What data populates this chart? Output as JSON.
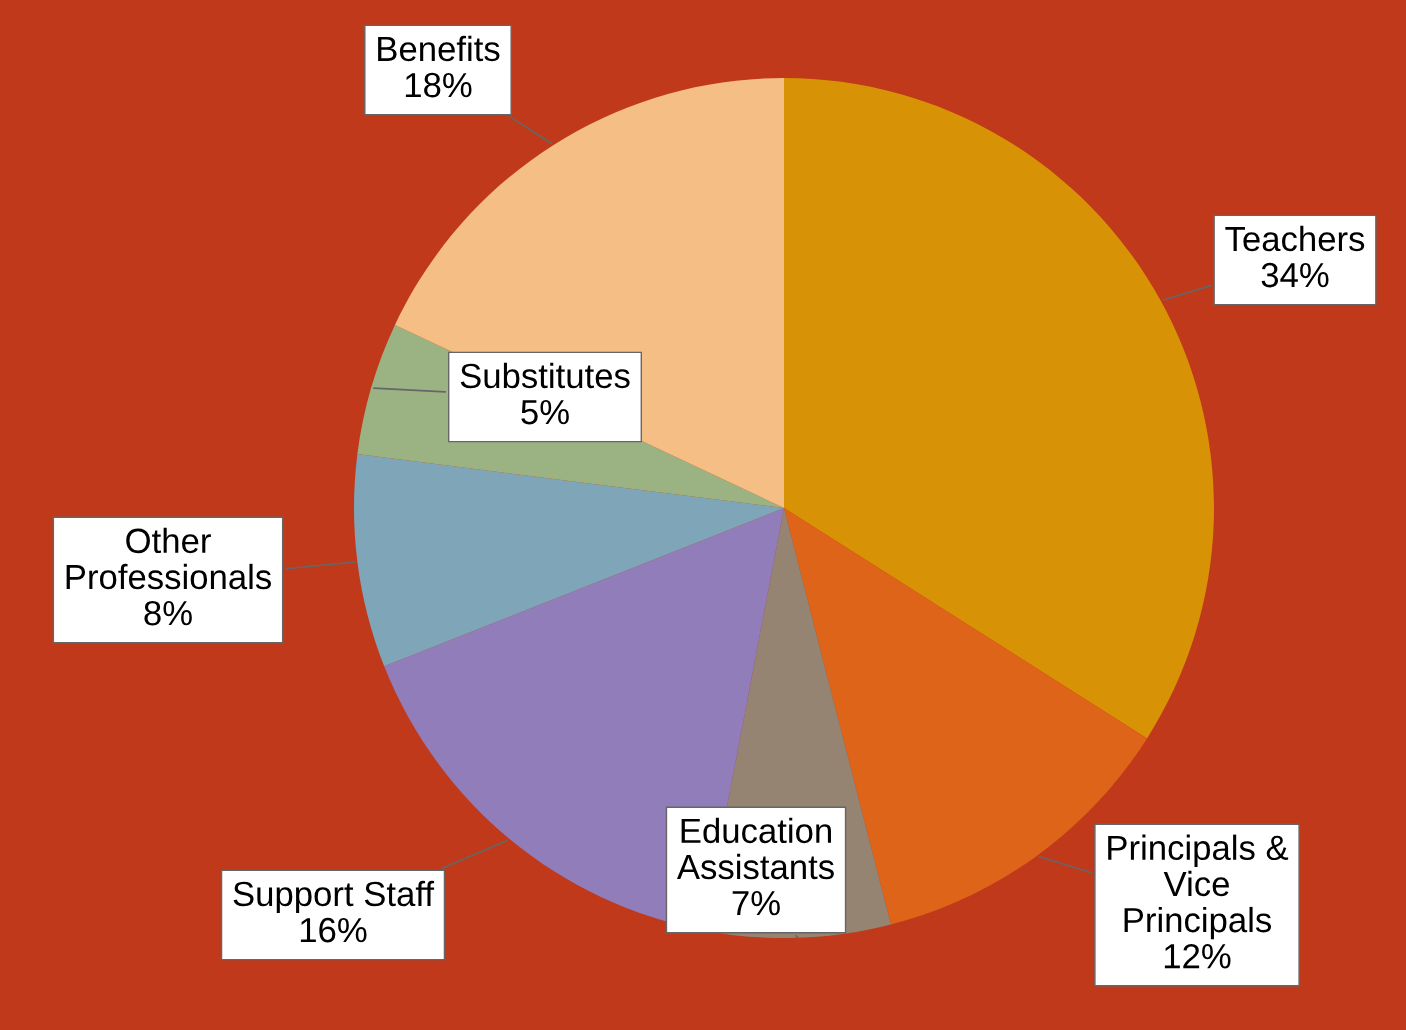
{
  "chart_data": {
    "type": "pie",
    "categories": [
      "Teachers",
      "Principals & Vice Principals",
      "Education Assistants",
      "Support Staff",
      "Other Professionals",
      "Substitutes",
      "Benefits"
    ],
    "values": [
      34,
      12,
      7,
      16,
      8,
      5,
      18
    ],
    "value_labels": [
      "34%",
      "12%",
      "7%",
      "16%",
      "8%",
      "5%",
      "18%"
    ],
    "colors": [
      "#d89205",
      "#dd6418",
      "#958472",
      "#907dba",
      "#7ea6b8",
      "#9bb383",
      "#f5be84"
    ],
    "legend": false
  }
}
